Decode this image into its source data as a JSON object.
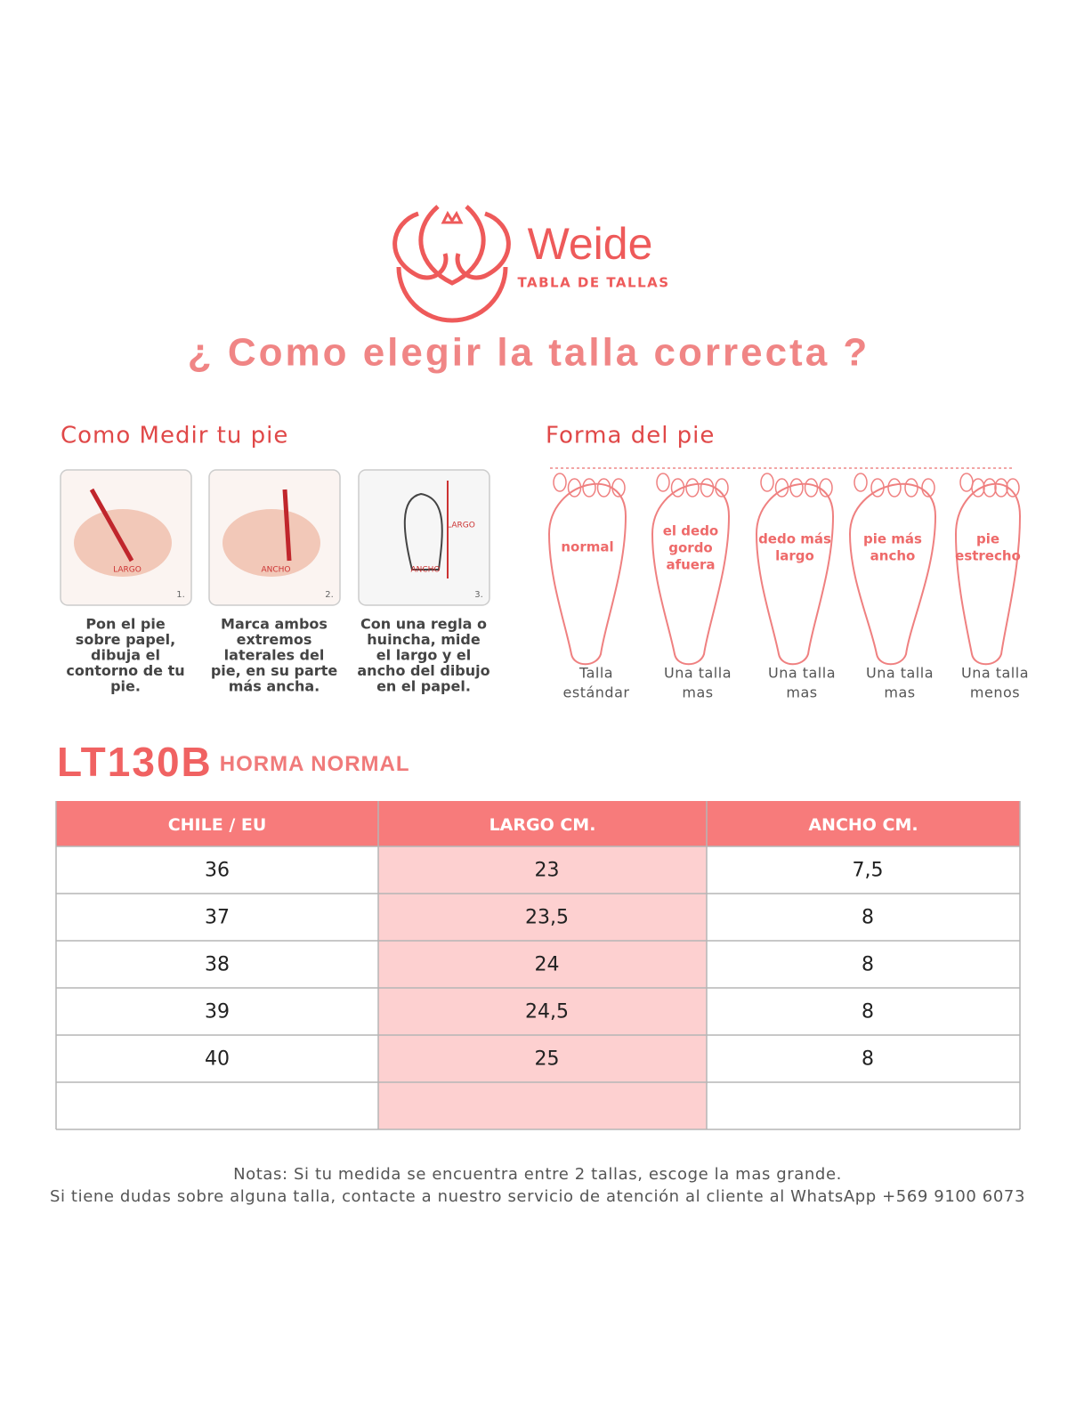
{
  "logo": {
    "brand": "Weide",
    "tagline": "TABLA DE TALLAS"
  },
  "title": "¿ Como elegir la talla correcta ?",
  "measure": {
    "heading": "Como Medir tu pie",
    "steps": [
      {
        "number": "1.",
        "tags": [
          "LARGO"
        ],
        "caption": [
          "Pon el pie",
          "sobre papel,",
          "dibuja el",
          "contorno de tu",
          "pie."
        ]
      },
      {
        "number": "2.",
        "tags": [
          "ANCHO"
        ],
        "caption": [
          "Marca ambos",
          "extremos",
          "laterales del",
          "pie, en su parte",
          "más ancha."
        ]
      },
      {
        "number": "3.",
        "tags": [
          "ANCHO",
          "LARGO"
        ],
        "caption": [
          "Con una regla o",
          "huincha, mide",
          "el largo y el",
          "ancho del dibujo",
          "en el papel."
        ]
      }
    ]
  },
  "shapes": {
    "heading": "Forma del pie",
    "feet": [
      {
        "label": [
          "normal"
        ],
        "caption": [
          "Talla",
          "estándar"
        ]
      },
      {
        "label": [
          "el dedo",
          "gordo",
          "afuera"
        ],
        "caption": [
          "Una talla",
          "mas"
        ]
      },
      {
        "label": [
          "dedo más",
          "largo"
        ],
        "caption": [
          "Una talla",
          "mas"
        ]
      },
      {
        "label": [
          "pie más",
          "ancho"
        ],
        "caption": [
          "Una talla",
          "mas"
        ]
      },
      {
        "label": [
          "pie",
          "estrecho"
        ],
        "caption": [
          "Una talla",
          "menos"
        ]
      }
    ]
  },
  "table": {
    "model": "LT130B",
    "fit": "HORMA NORMAL",
    "headers": [
      "CHILE / EU",
      "LARGO CM.",
      "ANCHO CM."
    ],
    "rows": [
      [
        "36",
        "23",
        "7,5"
      ],
      [
        "37",
        "23,5",
        "8"
      ],
      [
        "38",
        "24",
        "8"
      ],
      [
        "39",
        "24,5",
        "8"
      ],
      [
        "40",
        "25",
        "8"
      ]
    ]
  },
  "notes": [
    "Notas: Si tu medida se encuentra entre 2 tallas, escoge la mas grande.",
    "Si tiene dudas sobre alguna talla, contacte a nuestro servicio de atención al cliente al WhatsApp +569 9100 6073"
  ]
}
